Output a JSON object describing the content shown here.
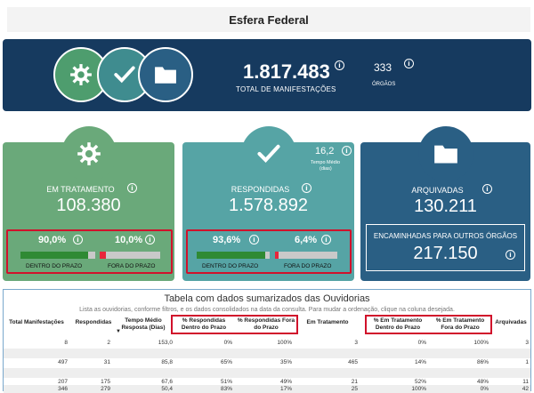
{
  "page": {
    "title": "Esfera Federal"
  },
  "hero": {
    "total_value": "1.817.483",
    "total_label": "TOTAL DE MANIFESTAÇÕES",
    "orgs_value": "333",
    "orgs_label": "ÓRGÃOS"
  },
  "cards": {
    "em_tratamento": {
      "label": "EM TRATAMENTO",
      "value": "108.380",
      "in_time_pct": "90,0%",
      "in_time_fraction": 0.9,
      "out_time_pct": "10,0%",
      "out_time_fraction": 0.1,
      "in_time_label": "DENTRO DO PRAZO",
      "out_time_label": "FORA DO PRAZO"
    },
    "respondidas": {
      "label": "RESPONDIDAS",
      "value": "1.578.892",
      "avg_time_value": "16,2",
      "avg_time_label": "Tempo Médio",
      "avg_time_unit": "(dias)",
      "in_time_pct": "93,6%",
      "in_time_fraction": 0.936,
      "out_time_pct": "6,4%",
      "out_time_fraction": 0.064,
      "in_time_label": "DENTRO DO PRAZO",
      "out_time_label": "FORA DO PRAZO"
    },
    "arquivadas": {
      "label": "ARQUIVADAS",
      "value": "130.211",
      "forwarded_label": "ENCAMINHADAS PARA OUTROS ÓRGÃOS",
      "forwarded_value": "217.150"
    }
  },
  "colors": {
    "navy": "#163a5f",
    "green": "#6aa97a",
    "teal": "#56a4a5",
    "blue": "#2a5f84",
    "bar_green": "#2f8a34",
    "bar_red": "#e8263b",
    "highlight": "#d1112b"
  },
  "icons": {
    "em_tratamento": "gear-icon",
    "respondidas": "check-icon",
    "arquivadas": "folder-icon",
    "info": "info-icon"
  },
  "table": {
    "title": "Tabela com dados sumarizados das Ouvidorias",
    "subtitle": "Lista as ouvidorias, conforme filtros, e os dados consolidados na data da consulta. Para mudar a ordenação, clique na coluna desejada.",
    "headers": {
      "total": "Total Manifestações",
      "respondidas": "Respondidas",
      "tempo": "Tempo Médio Resposta (Dias)",
      "resp_dentro": "% Respondidas Dentro do Prazo",
      "resp_fora": "% Respondidas Fora do Prazo",
      "tratamento": "Em Tratamento",
      "trat_dentro": "% Em Tratamento Dentro do Prazo",
      "trat_fora": "% Em Tratamento Fora do Prazo",
      "arquivadas": "Arquivadas"
    },
    "rows": [
      {
        "total": "8",
        "respondidas": "2",
        "tempo": "153,0",
        "resp_dentro": "0%",
        "resp_fora": "100%",
        "tratamento": "3",
        "trat_dentro": "0%",
        "trat_fora": "100%",
        "arquivadas": "3"
      },
      {
        "total": "",
        "respondidas": "",
        "tempo": "",
        "resp_dentro": "",
        "resp_fora": "",
        "tratamento": "",
        "trat_dentro": "",
        "trat_fora": "",
        "arquivadas": ""
      },
      {
        "total": "497",
        "respondidas": "31",
        "tempo": "85,8",
        "resp_dentro": "65%",
        "resp_fora": "35%",
        "tratamento": "465",
        "trat_dentro": "14%",
        "trat_fora": "86%",
        "arquivadas": "1"
      },
      {
        "total": "",
        "respondidas": "",
        "tempo": "",
        "resp_dentro": "",
        "resp_fora": "",
        "tratamento": "",
        "trat_dentro": "",
        "trat_fora": "",
        "arquivadas": ""
      },
      {
        "total": "207",
        "respondidas": "175",
        "tempo": "67,6",
        "resp_dentro": "51%",
        "resp_fora": "49%",
        "tratamento": "21",
        "trat_dentro": "52%",
        "trat_fora": "48%",
        "arquivadas": "11"
      },
      {
        "total": "346",
        "respondidas": "279",
        "tempo": "50,4",
        "resp_dentro": "83%",
        "resp_fora": "17%",
        "tratamento": "25",
        "trat_dentro": "100%",
        "trat_fora": "0%",
        "arquivadas": "42"
      }
    ]
  }
}
